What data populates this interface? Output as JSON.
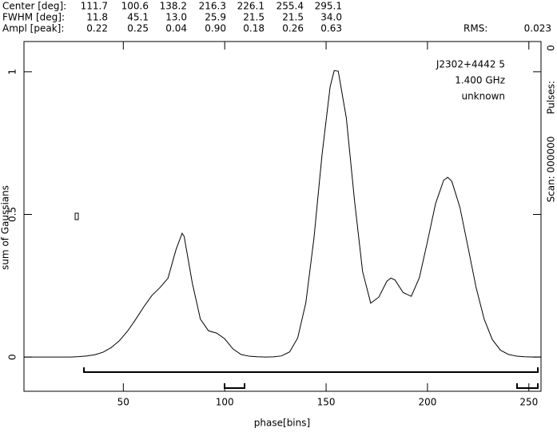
{
  "header": {
    "rows": [
      {
        "label": "Center [deg]:",
        "values": [
          "111.7",
          "100.6",
          "138.2",
          "216.3",
          "226.1",
          "255.4",
          "295.1"
        ]
      },
      {
        "label": "FWHM  [deg]:",
        "values": [
          "11.8",
          "45.1",
          "13.0",
          "25.9",
          "21.5",
          "21.5",
          "34.0"
        ]
      },
      {
        "label": "Ampl  [peak]:",
        "values": [
          "0.22",
          "0.25",
          "0.04",
          "0.90",
          "0.18",
          "0.26",
          "0.63"
        ]
      }
    ],
    "rms_label": "RMS:",
    "rms_value": "0.023"
  },
  "side": {
    "top": "0",
    "pulses": "Pulses:",
    "scan": "Scan: 000000"
  },
  "chart_data": {
    "type": "line",
    "annotations": [
      "J2302+4442 5",
      "1.400 GHz",
      "unknown"
    ],
    "x_label": "phase[bins]",
    "y_label": "sum of Gaussians",
    "xlim": [
      1,
      256
    ],
    "ylim": [
      -0.12,
      1.106
    ],
    "xticks": [
      50,
      100,
      150,
      200,
      250
    ],
    "yticks": [
      0,
      0.5,
      1
    ],
    "series": [
      {
        "color": "#000000",
        "x": [
          1,
          4,
          8,
          12,
          16,
          20,
          24,
          28,
          32,
          36,
          40,
          44,
          48,
          52,
          56,
          60,
          64,
          68,
          72,
          76,
          79,
          80,
          84,
          88,
          92,
          96,
          100,
          104,
          108,
          112,
          116,
          120,
          124,
          128,
          132,
          136,
          140,
          144,
          148,
          152,
          154,
          156,
          160,
          164,
          168,
          172,
          176,
          180,
          182,
          184,
          188,
          192,
          196,
          200,
          204,
          208,
          210,
          212,
          216,
          220,
          224,
          228,
          232,
          236,
          240,
          244,
          248,
          252,
          256
        ],
        "values": [
          0,
          0,
          0,
          0,
          0,
          0,
          0,
          0.0015,
          0.004,
          0.008,
          0.017,
          0.033,
          0.057,
          0.09,
          0.131,
          0.175,
          0.215,
          0.243,
          0.276,
          0.377,
          0.434,
          0.423,
          0.26,
          0.133,
          0.092,
          0.084,
          0.064,
          0.029,
          0.009,
          0.003,
          0.001,
          0,
          0.0006,
          0.004,
          0.018,
          0.067,
          0.19,
          0.416,
          0.709,
          0.948,
          1.004,
          1.002,
          0.837,
          0.55,
          0.3,
          0.189,
          0.21,
          0.266,
          0.277,
          0.27,
          0.226,
          0.213,
          0.278,
          0.405,
          0.538,
          0.62,
          0.63,
          0.616,
          0.525,
          0.385,
          0.243,
          0.132,
          0.061,
          0.024,
          0.009,
          0.003,
          0.001,
          0,
          0
        ]
      }
    ]
  }
}
